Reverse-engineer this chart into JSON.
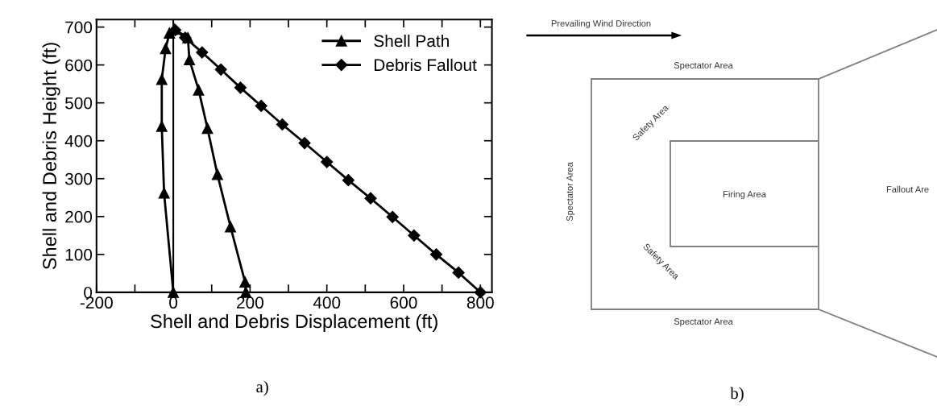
{
  "chart_data": [
    {
      "type": "line",
      "xlabel": "Shell and Debris Displacement (ft)",
      "ylabel": "Shell and Debris Height (ft)",
      "xlim": [
        -200,
        830
      ],
      "ylim": [
        0,
        720
      ],
      "xticks": [
        -200,
        {
          "value": -100,
          "label": null
        },
        0,
        {
          "value": 100,
          "label": null
        },
        200,
        {
          "value": 300,
          "label": null
        },
        400,
        {
          "value": 500,
          "label": null
        },
        600,
        {
          "value": 700,
          "label": null
        },
        800
      ],
      "yticks": [
        0,
        100,
        200,
        300,
        400,
        500,
        600,
        700
      ],
      "grid": false,
      "legend": "top right",
      "line_style": "solid",
      "ref_lines": [
        {
          "axis": "x",
          "value": 0,
          "color": "#000000"
        }
      ],
      "series": [
        {
          "name": "Shell Path",
          "color": "#000000",
          "marker": "triangle",
          "x": [
            0,
            -24,
            -30,
            -30,
            -20,
            -10,
            3,
            38,
            42,
            66,
            89,
            115,
            149,
            187,
            189
          ],
          "values": [
            0,
            262,
            438,
            562,
            643,
            684,
            694,
            672,
            614,
            534,
            433,
            311,
            173,
            27,
            0
          ]
        },
        {
          "name": "Debris Fallout",
          "color": "#000000",
          "marker": "diamond",
          "x": [
            5,
            31,
            75,
            124,
            175,
            229,
            284,
            342,
            400,
            456,
            514,
            571,
            627,
            685,
            743,
            800
          ],
          "values": [
            692,
            672,
            633,
            588,
            540,
            492,
            443,
            394,
            344,
            296,
            248,
            199,
            150,
            100,
            52,
            0
          ]
        }
      ],
      "annotations": [
        "a)"
      ]
    },
    {
      "type": "other",
      "annotations": [
        "Prevailing Wind Direction",
        "Spectator Area",
        "Safety Area",
        "Spectator Area",
        "Firing Area",
        "Safety Area",
        "Spectator Area",
        "Fallout Are",
        "b)"
      ]
    }
  ]
}
